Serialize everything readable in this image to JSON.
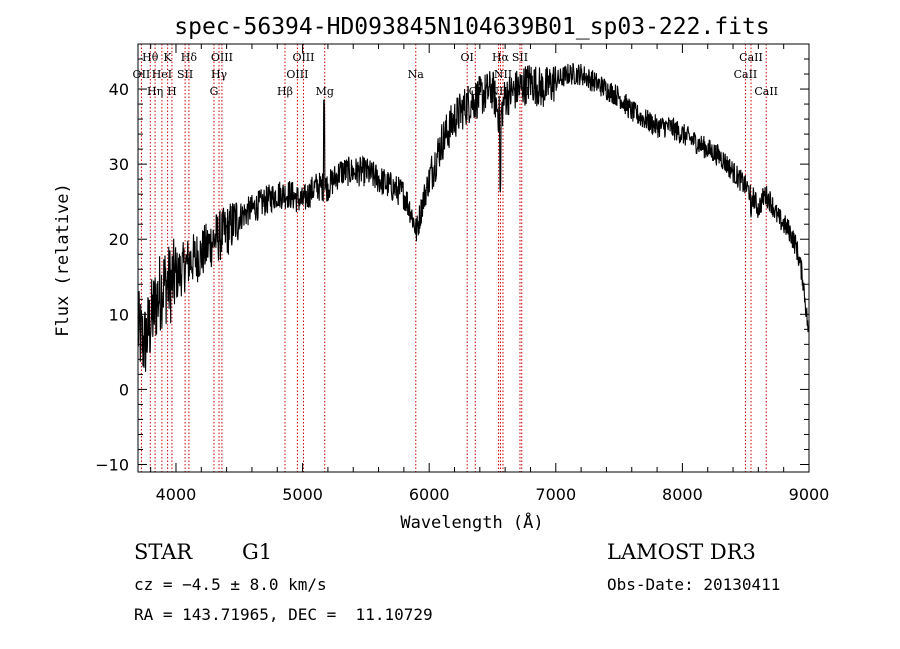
{
  "chart_data": {
    "type": "line",
    "title": "spec-56394-HD093845N104639B01_sp03-222.fits",
    "xlabel": "Wavelength (Å)",
    "ylabel": "Flux (relative)",
    "xlim": [
      3700,
      9000
    ],
    "ylim": [
      -11,
      46
    ],
    "x_ticks": [
      4000,
      5000,
      6000,
      7000,
      8000,
      9000
    ],
    "y_ticks": [
      -10,
      0,
      10,
      20,
      30,
      40
    ],
    "x_tick_labels": [
      "4000",
      "5000",
      "6000",
      "7000",
      "8000",
      "9000"
    ],
    "y_tick_labels": [
      "−10",
      "0",
      "10",
      "20",
      "30",
      "40"
    ],
    "series": [
      {
        "name": "flux",
        "x": [
          3700,
          3750,
          3800,
          3850,
          3900,
          3950,
          4000,
          4100,
          4200,
          4300,
          4400,
          4500,
          4600,
          4700,
          4800,
          4900,
          5000,
          5100,
          5200,
          5300,
          5400,
          5500,
          5600,
          5700,
          5800,
          5850,
          5900,
          5950,
          6000,
          6100,
          6200,
          6300,
          6400,
          6500,
          6560,
          6600,
          6700,
          6800,
          6900,
          7000,
          7100,
          7200,
          7300,
          7400,
          7500,
          7600,
          7700,
          7800,
          7900,
          8000,
          8100,
          8200,
          8300,
          8400,
          8500,
          8550,
          8600,
          8650,
          8700,
          8750,
          8800,
          8850,
          8900,
          8950,
          9000
        ],
        "y": [
          8,
          6,
          9,
          12,
          14,
          14,
          15,
          17,
          18,
          20,
          21,
          23,
          24,
          25,
          26,
          26,
          25,
          27,
          27,
          29,
          29,
          29,
          28,
          27,
          26,
          24,
          21,
          25,
          28,
          33,
          36,
          38,
          39,
          40,
          36,
          39,
          40,
          41,
          40,
          41,
          42,
          42,
          41,
          40,
          39,
          37,
          36,
          35,
          35,
          34,
          33,
          32,
          31,
          29,
          27,
          26,
          24,
          26,
          25,
          23,
          22,
          21,
          19,
          15,
          7
        ]
      }
    ],
    "line_markers": [
      {
        "name": "OII",
        "wavelength": 3727,
        "row": 2
      },
      {
        "name": "Hθ",
        "wavelength": 3797,
        "row": 1
      },
      {
        "name": "Hη",
        "wavelength": 3835,
        "row": 3
      },
      {
        "name": "HeI",
        "wavelength": 3889,
        "row": 2
      },
      {
        "name": "K",
        "wavelength": 3934,
        "row": 1
      },
      {
        "name": "H",
        "wavelength": 3968,
        "row": 3
      },
      {
        "name": "SII",
        "wavelength": 4072,
        "row": 2
      },
      {
        "name": "Hδ",
        "wavelength": 4102,
        "row": 1
      },
      {
        "name": "G",
        "wavelength": 4300,
        "row": 3
      },
      {
        "name": "Hγ",
        "wavelength": 4340,
        "row": 2
      },
      {
        "name": "OIII",
        "wavelength": 4363,
        "row": 1
      },
      {
        "name": "Hβ",
        "wavelength": 4861,
        "row": 3
      },
      {
        "name": "OIII",
        "wavelength": 4959,
        "row": 2
      },
      {
        "name": "OIII",
        "wavelength": 5007,
        "row": 1
      },
      {
        "name": "Mg",
        "wavelength": 5175,
        "row": 3
      },
      {
        "name": "Na",
        "wavelength": 5894,
        "row": 2
      },
      {
        "name": "OI",
        "wavelength": 6300,
        "row": 1
      },
      {
        "name": "OI",
        "wavelength": 6364,
        "row": 3
      },
      {
        "name": "NII",
        "wavelength": 6548,
        "row": 3
      },
      {
        "name": "Hα",
        "wavelength": 6563,
        "row": 1
      },
      {
        "name": "NII",
        "wavelength": 6583,
        "row": 2
      },
      {
        "name": "SII",
        "wavelength": 6717,
        "row": 1
      },
      {
        "name": "SII",
        "wavelength": 6731,
        "row": 3
      },
      {
        "name": "CaII",
        "wavelength": 8498,
        "row": 2
      },
      {
        "name": "CaII",
        "wavelength": 8542,
        "row": 1
      },
      {
        "name": "CaII",
        "wavelength": 8662,
        "row": 3
      }
    ]
  },
  "info": {
    "object_class": "STAR",
    "subclass": "G1",
    "survey": "LAMOST DR3",
    "redshift_line": "cz = −4.5 ± 8.0 km/s",
    "obs_date": "Obs-Date: 20130411",
    "coords": "RA = 143.71965, DEC =  11.10729"
  },
  "colors": {
    "line": "#000000",
    "marker": "#cc0000"
  }
}
